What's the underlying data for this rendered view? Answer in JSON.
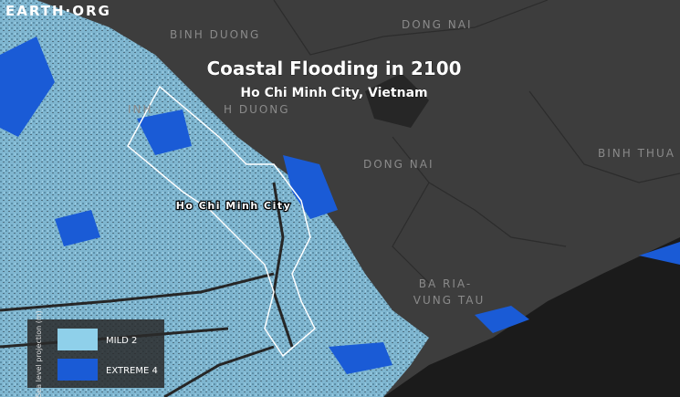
{
  "brand": "EARTH·ORG",
  "title": "Coastal Flooding in 2100",
  "subtitle": "Ho Chi Minh City, Vietnam",
  "places": [
    "BINH DUONG",
    "DONG NAI",
    "INH",
    "H DUONG",
    "DONG NAI",
    "BINH THUA",
    "Ho Chi Minh City",
    "BA RIA-",
    "VUNG TAU"
  ],
  "legend": {
    "title": "Sea level projection (m)",
    "items": [
      "MILD 2",
      "EXTREME 4"
    ]
  }
}
